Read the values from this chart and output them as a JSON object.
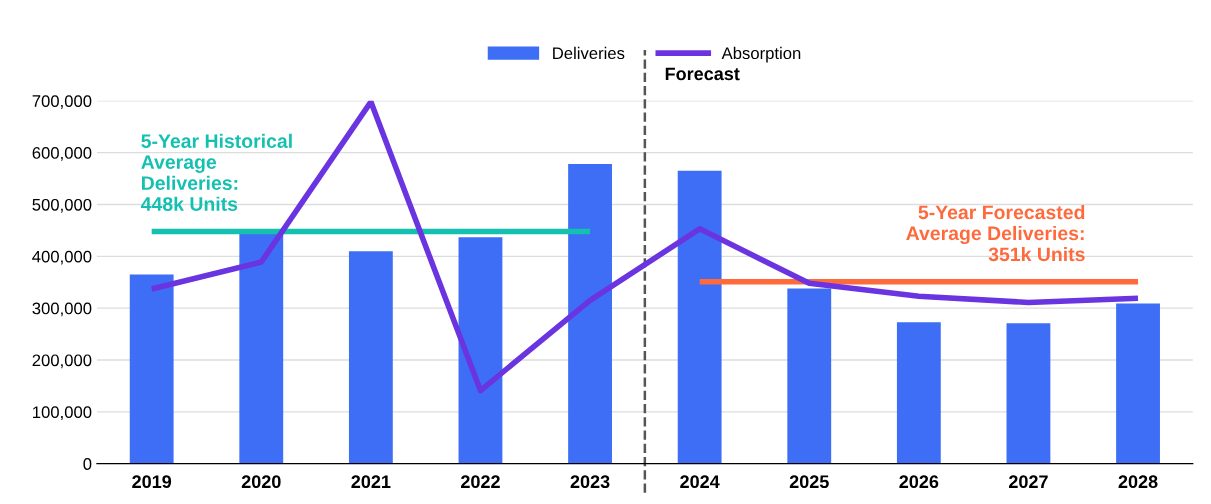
{
  "chart_data": {
    "type": "bar",
    "categories": [
      "2019",
      "2020",
      "2021",
      "2022",
      "2023",
      "2024",
      "2025",
      "2026",
      "2027",
      "2028"
    ],
    "series": [
      {
        "name": "Deliveries",
        "color": "#3d6ef5",
        "values": [
          365000,
          447000,
          410000,
          437000,
          578000,
          565000,
          338000,
          273000,
          271000,
          309000
        ]
      },
      {
        "type": "line",
        "color": "#14c0b0",
        "values": [
          448000,
          448000,
          448000,
          448000,
          448000,
          null,
          null,
          null,
          null,
          null
        ]
      },
      {
        "type": "line",
        "color": "#ff6a3d",
        "values": [
          null,
          null,
          null,
          null,
          null,
          351000,
          351000,
          351000,
          351000,
          351000
        ]
      },
      {
        "name": "Absorption",
        "type": "line",
        "color": "#6a35e0",
        "values": [
          337000,
          389000,
          698000,
          141000,
          315000,
          453000,
          348000,
          323000,
          311000,
          319000
        ]
      }
    ],
    "annotations": [
      {
        "text": "5-Year Historical\nAverage\nDeliveries:\n448k Units",
        "x": "2019",
        "y": 448000
      },
      {
        "text": "5-Year Forecasted\nAverage Deliveries:\n351k Units",
        "x": "2027",
        "y": 351000
      }
    ],
    "ref_lines": [
      {
        "axis": "x",
        "value": "2024",
        "label": "Forecast",
        "color": "#555555",
        "line_style": "dashed"
      }
    ],
    "ylim": [
      0,
      700000
    ],
    "yticks": [
      {
        "value": 0,
        "label": "0"
      },
      {
        "value": 100000,
        "label": "100,000"
      },
      {
        "value": 200000,
        "label": "200,000"
      },
      {
        "value": 300000,
        "label": "300,000"
      },
      {
        "value": 400000,
        "label": "400,000"
      },
      {
        "value": 500000,
        "label": "500,000"
      },
      {
        "value": 600000,
        "label": "600,000"
      },
      {
        "value": 700000,
        "label": "700,000"
      }
    ],
    "grid": "y",
    "legend": "top",
    "marker": "none",
    "line_style": "solid"
  }
}
